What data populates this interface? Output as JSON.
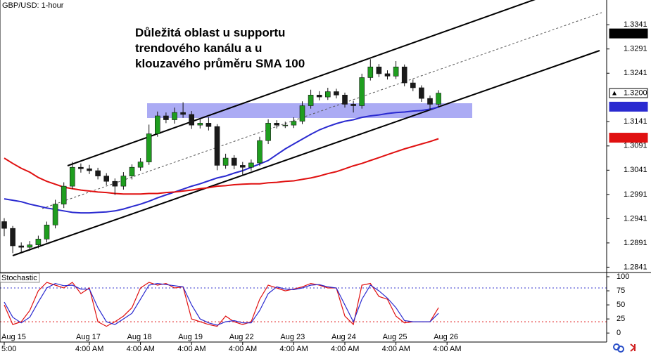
{
  "header": {
    "symbol_label": "GBP/USD: 1-hour"
  },
  "annotation": [
    "Důležitá oblast u supportu",
    "trendového kanálu a u",
    "klouzavého průměru SMA 100"
  ],
  "chart_data": [
    {
      "type": "candlestick",
      "categories": [
        "Aug 15",
        null,
        null,
        null,
        null,
        null,
        null,
        null,
        null,
        null,
        "Aug 17",
        null,
        null,
        null,
        null,
        null,
        "Aug 18",
        null,
        null,
        null,
        null,
        null,
        "Aug 19",
        null,
        null,
        null,
        null,
        null,
        "Aug 22",
        null,
        null,
        null,
        null,
        null,
        "Aug 23",
        null,
        null,
        null,
        null,
        null,
        "Aug 24",
        null,
        null,
        null,
        null,
        null,
        "Aug 25",
        null,
        null,
        null,
        null,
        null,
        "Aug 26"
      ],
      "times": [
        "5:00",
        null,
        null,
        null,
        null,
        null,
        null,
        null,
        null,
        null,
        "4:00 AM",
        null,
        null,
        null,
        null,
        null,
        "4:00 AM",
        null,
        null,
        null,
        null,
        null,
        "4:00 AM",
        null,
        null,
        null,
        null,
        null,
        "4:00 AM",
        null,
        null,
        null,
        null,
        null,
        "4:00 AM",
        null,
        null,
        null,
        null,
        null,
        "4:00 AM",
        null,
        null,
        null,
        null,
        null,
        "4:00 AM",
        null,
        null,
        null,
        null,
        null,
        "4:00 AM"
      ],
      "open": [
        1.2935,
        1.2921,
        1.2885,
        1.2882,
        1.2887,
        1.2899,
        1.2928,
        1.2971,
        1.3008,
        1.3047,
        1.3044,
        1.304,
        1.3029,
        1.3018,
        1.3008,
        1.3029,
        1.3047,
        1.3058,
        1.3116,
        1.3153,
        1.3145,
        1.316,
        1.3156,
        1.3134,
        1.3138,
        1.3131,
        1.3051,
        1.3066,
        1.3051,
        1.3047,
        1.3056,
        1.3102,
        1.3138,
        1.3134,
        1.3134,
        1.3142,
        1.3174,
        1.3196,
        1.3192,
        1.3203,
        1.3196,
        1.3177,
        1.3174,
        1.3232,
        1.3254,
        1.324,
        1.3235,
        1.3254,
        1.3221,
        1.3211,
        1.3189,
        1.3177,
        null
      ],
      "high": [
        1.2942,
        1.2926,
        1.2892,
        1.2895,
        1.2906,
        1.2935,
        1.298,
        1.3016,
        1.3058,
        1.3055,
        1.3052,
        1.3046,
        1.3035,
        1.3024,
        1.3037,
        1.3053,
        1.3066,
        1.3135,
        1.3162,
        1.316,
        1.317,
        1.3181,
        1.3163,
        1.3146,
        1.315,
        1.3136,
        1.3075,
        1.3072,
        1.3058,
        1.3063,
        1.311,
        1.3146,
        1.3144,
        1.3141,
        1.315,
        1.3183,
        1.3207,
        1.3204,
        1.3211,
        1.3209,
        1.3201,
        1.3184,
        1.324,
        1.327,
        1.326,
        1.3247,
        1.3266,
        1.3259,
        1.3228,
        1.3216,
        1.3195,
        1.3206,
        null
      ],
      "low": [
        1.2905,
        1.287,
        1.2872,
        1.2875,
        1.288,
        1.2892,
        1.2921,
        1.2963,
        1.3002,
        1.3036,
        1.3033,
        1.3022,
        1.301,
        1.299,
        1.3001,
        1.3022,
        1.304,
        1.3052,
        1.311,
        1.3138,
        1.3137,
        1.3149,
        1.3126,
        1.3127,
        1.3123,
        1.3041,
        1.3044,
        1.3043,
        1.303,
        1.304,
        1.305,
        1.3095,
        1.3127,
        1.3128,
        1.3128,
        1.3136,
        1.3168,
        1.3185,
        1.3186,
        1.3189,
        1.317,
        1.316,
        1.3168,
        1.3226,
        1.3233,
        1.3228,
        1.3229,
        1.3214,
        1.3204,
        1.3182,
        1.3165,
        1.3171,
        null
      ],
      "close": [
        1.2921,
        1.2885,
        1.2882,
        1.2887,
        1.2899,
        1.2928,
        1.2971,
        1.3008,
        1.3047,
        1.3044,
        1.304,
        1.3029,
        1.3018,
        1.3008,
        1.3029,
        1.3047,
        1.3058,
        1.3116,
        1.3153,
        1.3145,
        1.316,
        1.3156,
        1.3134,
        1.3138,
        1.3131,
        1.3051,
        1.3066,
        1.3051,
        1.3047,
        1.3056,
        1.3102,
        1.3138,
        1.3134,
        1.3134,
        1.3142,
        1.3174,
        1.3196,
        1.3192,
        1.3203,
        1.3196,
        1.3177,
        1.3174,
        1.3232,
        1.3254,
        1.324,
        1.3235,
        1.3254,
        1.3221,
        1.3211,
        1.3189,
        1.3177,
        1.32,
        null
      ],
      "up_color": "#1f9e1f",
      "down_color": "#1a1a1a",
      "series": [
        {
          "color": "#2a2ad0",
          "values": [
            1.2982,
            1.2979,
            1.2976,
            1.2971,
            1.2967,
            1.2963,
            1.296,
            1.2957,
            1.2954,
            1.2953,
            1.2953,
            1.2954,
            1.2955,
            1.2957,
            1.2961,
            1.2966,
            1.2971,
            1.2977,
            1.2984,
            1.299,
            1.2996,
            1.3002,
            1.3008,
            1.3013,
            1.3019,
            1.3025,
            1.3029,
            1.3035,
            1.304,
            1.3047,
            1.3054,
            1.3061,
            1.3073,
            1.3085,
            1.3095,
            1.3105,
            1.3115,
            1.3124,
            1.3131,
            1.3137,
            1.3142,
            1.3145,
            1.315,
            1.3153,
            1.3155,
            1.3158,
            1.316,
            1.3161,
            1.3163,
            1.3164,
            1.3167,
            1.3171,
            null
          ]
        },
        {
          "color": "#e01010",
          "values": [
            1.3066,
            1.3055,
            1.3045,
            1.3037,
            1.3026,
            1.3018,
            1.3012,
            1.3006,
            1.3003,
            1.3,
            1.2998,
            1.2996,
            1.2995,
            1.2993,
            1.2992,
            1.2992,
            1.2992,
            1.2993,
            1.2993,
            1.2995,
            1.2996,
            1.2998,
            1.3,
            1.3003,
            1.3005,
            1.3008,
            1.3009,
            1.3011,
            1.3012,
            1.3013,
            1.3013,
            1.3015,
            1.3016,
            1.3018,
            1.3019,
            1.3022,
            1.3025,
            1.3029,
            1.3034,
            1.3038,
            1.3044,
            1.305,
            1.3055,
            1.3061,
            1.3067,
            1.3073,
            1.3079,
            1.3085,
            1.309,
            1.3095,
            1.31,
            1.3106,
            null
          ]
        }
      ],
      "ylim": [
        1.283,
        1.3392
      ],
      "yticks": [
        1.3341,
        1.3291,
        1.3241,
        1.3141,
        1.3091,
        1.3041,
        1.2991,
        1.2941,
        1.2891,
        1.2841
      ],
      "price_markers": [
        {
          "value": 1.3323,
          "color": "#000000"
        },
        {
          "value": 1.32,
          "label": "1.3200",
          "color": "#ffffff"
        },
        {
          "value": 1.3172,
          "color": "#2a2ad0"
        },
        {
          "value": 1.3108,
          "color": "#e01010"
        }
      ]
    },
    {
      "type": "line",
      "title": "Stochastic",
      "series": [
        {
          "color": "#e01010",
          "values": [
            50,
            15,
            20,
            40,
            75,
            90,
            85,
            80,
            90,
            70,
            80,
            20,
            12,
            20,
            30,
            45,
            80,
            90,
            85,
            88,
            80,
            82,
            25,
            20,
            15,
            12,
            30,
            20,
            15,
            20,
            60,
            85,
            80,
            75,
            78,
            82,
            88,
            85,
            80,
            80,
            30,
            15,
            85,
            88,
            65,
            60,
            30,
            18,
            20,
            20,
            20,
            45,
            null
          ]
        },
        {
          "color": "#2a2ad0",
          "values": [
            55,
            28,
            18,
            28,
            55,
            80,
            88,
            84,
            85,
            78,
            78,
            45,
            20,
            15,
            25,
            35,
            60,
            85,
            88,
            86,
            84,
            82,
            50,
            25,
            18,
            14,
            20,
            22,
            18,
            18,
            40,
            70,
            82,
            78,
            77,
            80,
            85,
            86,
            82,
            80,
            50,
            20,
            60,
            85,
            75,
            62,
            45,
            22,
            20,
            20,
            20,
            35,
            null
          ]
        }
      ],
      "levels": [
        {
          "value": 80,
          "color": "#3333cc"
        },
        {
          "value": 20,
          "color": "#e01010"
        }
      ],
      "ylim": [
        -16,
        107.5
      ],
      "yticks": [
        100,
        75,
        50,
        25,
        0
      ]
    }
  ]
}
